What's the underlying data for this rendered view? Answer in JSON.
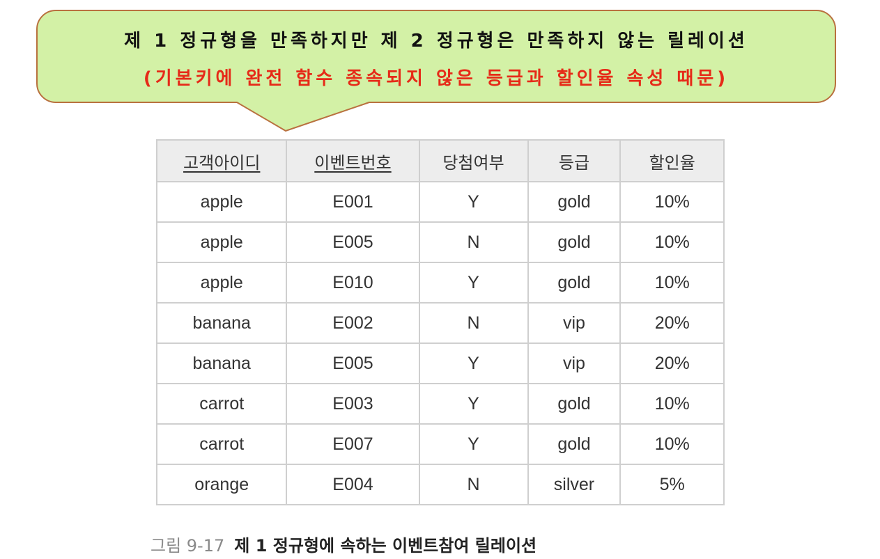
{
  "callout": {
    "line1": "제 1 정규형을 만족하지만 제 2 정규형은 만족하지 않는 릴레이션",
    "line2": "(기본키에 완전 함수 종속되지 않은 등급과 할인율 속성 때문)",
    "colors": {
      "fill": "#d3f1a6",
      "border": "#b9713f",
      "line2_text": "#e62a18"
    }
  },
  "table": {
    "headers": [
      "고객아이디",
      "이벤트번호",
      "당첨여부",
      "등급",
      "할인율"
    ],
    "primary_key_columns": [
      "고객아이디",
      "이벤트번호"
    ],
    "rows": [
      [
        "apple",
        "E001",
        "Y",
        "gold",
        "10%"
      ],
      [
        "apple",
        "E005",
        "N",
        "gold",
        "10%"
      ],
      [
        "apple",
        "E010",
        "Y",
        "gold",
        "10%"
      ],
      [
        "banana",
        "E002",
        "N",
        "vip",
        "20%"
      ],
      [
        "banana",
        "E005",
        "Y",
        "vip",
        "20%"
      ],
      [
        "carrot",
        "E003",
        "Y",
        "gold",
        "10%"
      ],
      [
        "carrot",
        "E007",
        "Y",
        "gold",
        "10%"
      ],
      [
        "orange",
        "E004",
        "N",
        "silver",
        "5%"
      ]
    ]
  },
  "caption": {
    "figure_number": "그림 9-17",
    "title": "제 1 정규형에 속하는 이벤트참여 릴레이션"
  }
}
